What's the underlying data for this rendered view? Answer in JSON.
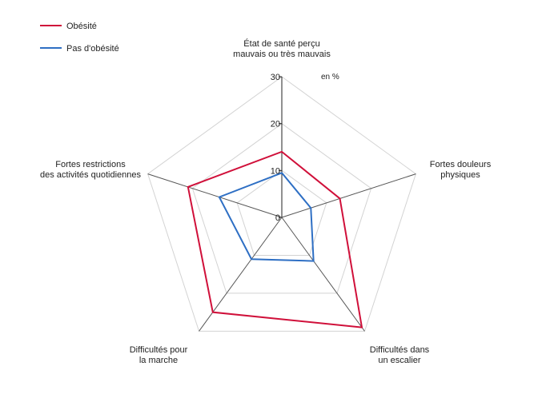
{
  "chart_data": {
    "type": "radar",
    "unit": "en %",
    "rmax": 30,
    "ticks": [
      0,
      10,
      20,
      30
    ],
    "axes": [
      [
        "État de santé perçu",
        "mauvais ou très mauvais"
      ],
      [
        "Fortes douleurs",
        "physiques"
      ],
      [
        "Difficultés dans",
        "un escalier"
      ],
      [
        "Difficultés pour",
        "la marche"
      ],
      [
        "Fortes restrictions",
        "des activités quotidiennes"
      ]
    ],
    "series": [
      {
        "name": "Obésité",
        "color": "#d0103a",
        "values": [
          14,
          13,
          29,
          25,
          21
        ]
      },
      {
        "name": "Pas d'obésité",
        "color": "#2e6fc4",
        "values": [
          9.5,
          6.5,
          11.5,
          11,
          14
        ]
      }
    ],
    "legend_position": "top-left",
    "grid": true
  }
}
